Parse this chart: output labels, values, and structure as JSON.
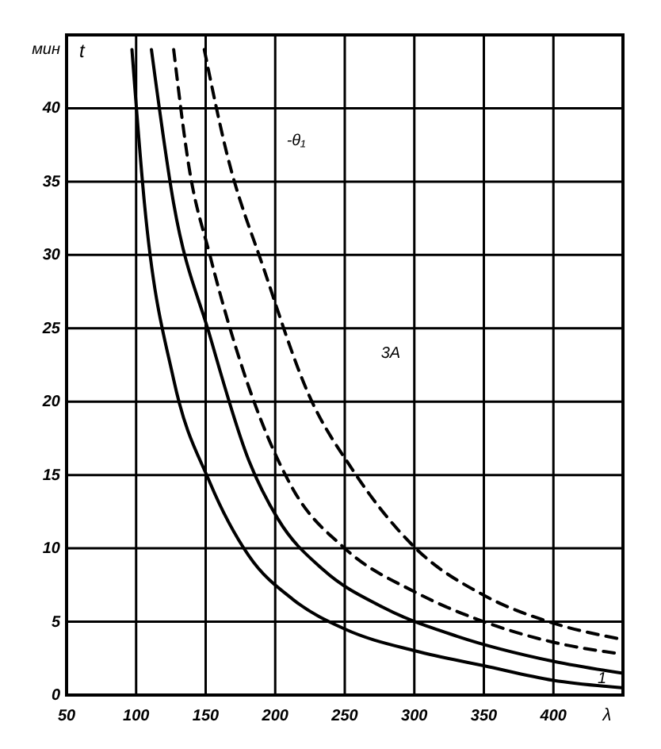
{
  "chart_data": {
    "type": "line",
    "ylabel": "t",
    "xlabel": "λ",
    "annotations": [
      "мин",
      "-θ₁",
      "3А",
      "1"
    ],
    "xlim": [
      50,
      450
    ],
    "xticks": [
      50,
      100,
      150,
      200,
      250,
      300,
      350,
      400
    ],
    "ylim": [
      0,
      45
    ],
    "yticks": [
      0,
      5,
      10,
      15,
      20,
      25,
      30,
      35,
      40
    ],
    "grid": true,
    "series": [
      {
        "color": "#000000",
        "line_style": "solid",
        "x": [
          97,
          106,
          127,
          153,
          181,
          213,
          250,
          301,
          350,
          400,
          449
        ],
        "values": [
          44,
          33.5,
          21.5,
          14.5,
          9.5,
          6.5,
          4.5,
          3,
          2,
          1,
          0.5
        ]
      },
      {
        "color": "#000000",
        "line_style": "solid",
        "x": [
          111,
          127,
          153,
          181,
          202,
          235,
          277,
          331,
          400,
          449
        ],
        "values": [
          44,
          33.5,
          24.5,
          16,
          12,
          8.5,
          6,
          4,
          2.3,
          1.5
        ]
      },
      {
        "color": "#000000",
        "line_style": "dashed",
        "x": [
          127,
          138,
          153,
          181,
          213,
          250,
          301,
          350,
          400,
          449
        ],
        "values": [
          44,
          36,
          30,
          21,
          14,
          10,
          7,
          5,
          3.6,
          2.8
        ]
      },
      {
        "color": "#000000",
        "line_style": "dashed",
        "x": [
          149,
          165,
          192,
          224,
          256,
          301,
          350,
          400,
          449
        ],
        "values": [
          44,
          37,
          29,
          20.5,
          15.3,
          10,
          6.8,
          4.9,
          3.8
        ]
      }
    ]
  }
}
